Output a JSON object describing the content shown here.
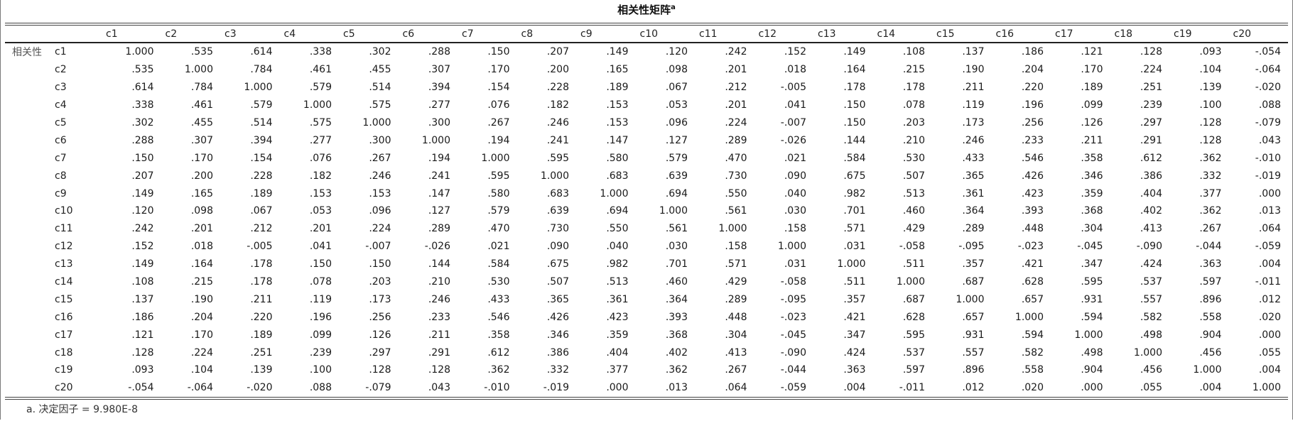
{
  "title": "相关性矩阵",
  "title_marker": "a",
  "row_group_label": "相关性",
  "columns": [
    "c1",
    "c2",
    "c3",
    "c4",
    "c5",
    "c6",
    "c7",
    "c8",
    "c9",
    "c10",
    "c11",
    "c12",
    "c13",
    "c14",
    "c15",
    "c16",
    "c17",
    "c18",
    "c19",
    "c20"
  ],
  "rows": [
    {
      "label": "c1",
      "values": [
        "1.000",
        ".535",
        ".614",
        ".338",
        ".302",
        ".288",
        ".150",
        ".207",
        ".149",
        ".120",
        ".242",
        ".152",
        ".149",
        ".108",
        ".137",
        ".186",
        ".121",
        ".128",
        ".093",
        "-.054"
      ]
    },
    {
      "label": "c2",
      "values": [
        ".535",
        "1.000",
        ".784",
        ".461",
        ".455",
        ".307",
        ".170",
        ".200",
        ".165",
        ".098",
        ".201",
        ".018",
        ".164",
        ".215",
        ".190",
        ".204",
        ".170",
        ".224",
        ".104",
        "-.064"
      ]
    },
    {
      "label": "c3",
      "values": [
        ".614",
        ".784",
        "1.000",
        ".579",
        ".514",
        ".394",
        ".154",
        ".228",
        ".189",
        ".067",
        ".212",
        "-.005",
        ".178",
        ".178",
        ".211",
        ".220",
        ".189",
        ".251",
        ".139",
        "-.020"
      ]
    },
    {
      "label": "c4",
      "values": [
        ".338",
        ".461",
        ".579",
        "1.000",
        ".575",
        ".277",
        ".076",
        ".182",
        ".153",
        ".053",
        ".201",
        ".041",
        ".150",
        ".078",
        ".119",
        ".196",
        ".099",
        ".239",
        ".100",
        ".088"
      ]
    },
    {
      "label": "c5",
      "values": [
        ".302",
        ".455",
        ".514",
        ".575",
        "1.000",
        ".300",
        ".267",
        ".246",
        ".153",
        ".096",
        ".224",
        "-.007",
        ".150",
        ".203",
        ".173",
        ".256",
        ".126",
        ".297",
        ".128",
        "-.079"
      ]
    },
    {
      "label": "c6",
      "values": [
        ".288",
        ".307",
        ".394",
        ".277",
        ".300",
        "1.000",
        ".194",
        ".241",
        ".147",
        ".127",
        ".289",
        "-.026",
        ".144",
        ".210",
        ".246",
        ".233",
        ".211",
        ".291",
        ".128",
        ".043"
      ]
    },
    {
      "label": "c7",
      "values": [
        ".150",
        ".170",
        ".154",
        ".076",
        ".267",
        ".194",
        "1.000",
        ".595",
        ".580",
        ".579",
        ".470",
        ".021",
        ".584",
        ".530",
        ".433",
        ".546",
        ".358",
        ".612",
        ".362",
        "-.010"
      ]
    },
    {
      "label": "c8",
      "values": [
        ".207",
        ".200",
        ".228",
        ".182",
        ".246",
        ".241",
        ".595",
        "1.000",
        ".683",
        ".639",
        ".730",
        ".090",
        ".675",
        ".507",
        ".365",
        ".426",
        ".346",
        ".386",
        ".332",
        "-.019"
      ]
    },
    {
      "label": "c9",
      "values": [
        ".149",
        ".165",
        ".189",
        ".153",
        ".153",
        ".147",
        ".580",
        ".683",
        "1.000",
        ".694",
        ".550",
        ".040",
        ".982",
        ".513",
        ".361",
        ".423",
        ".359",
        ".404",
        ".377",
        ".000"
      ]
    },
    {
      "label": "c10",
      "values": [
        ".120",
        ".098",
        ".067",
        ".053",
        ".096",
        ".127",
        ".579",
        ".639",
        ".694",
        "1.000",
        ".561",
        ".030",
        ".701",
        ".460",
        ".364",
        ".393",
        ".368",
        ".402",
        ".362",
        ".013"
      ]
    },
    {
      "label": "c11",
      "values": [
        ".242",
        ".201",
        ".212",
        ".201",
        ".224",
        ".289",
        ".470",
        ".730",
        ".550",
        ".561",
        "1.000",
        ".158",
        ".571",
        ".429",
        ".289",
        ".448",
        ".304",
        ".413",
        ".267",
        ".064"
      ]
    },
    {
      "label": "c12",
      "values": [
        ".152",
        ".018",
        "-.005",
        ".041",
        "-.007",
        "-.026",
        ".021",
        ".090",
        ".040",
        ".030",
        ".158",
        "1.000",
        ".031",
        "-.058",
        "-.095",
        "-.023",
        "-.045",
        "-.090",
        "-.044",
        "-.059"
      ]
    },
    {
      "label": "c13",
      "values": [
        ".149",
        ".164",
        ".178",
        ".150",
        ".150",
        ".144",
        ".584",
        ".675",
        ".982",
        ".701",
        ".571",
        ".031",
        "1.000",
        ".511",
        ".357",
        ".421",
        ".347",
        ".424",
        ".363",
        ".004"
      ]
    },
    {
      "label": "c14",
      "values": [
        ".108",
        ".215",
        ".178",
        ".078",
        ".203",
        ".210",
        ".530",
        ".507",
        ".513",
        ".460",
        ".429",
        "-.058",
        ".511",
        "1.000",
        ".687",
        ".628",
        ".595",
        ".537",
        ".597",
        "-.011"
      ]
    },
    {
      "label": "c15",
      "values": [
        ".137",
        ".190",
        ".211",
        ".119",
        ".173",
        ".246",
        ".433",
        ".365",
        ".361",
        ".364",
        ".289",
        "-.095",
        ".357",
        ".687",
        "1.000",
        ".657",
        ".931",
        ".557",
        ".896",
        ".012"
      ]
    },
    {
      "label": "c16",
      "values": [
        ".186",
        ".204",
        ".220",
        ".196",
        ".256",
        ".233",
        ".546",
        ".426",
        ".423",
        ".393",
        ".448",
        "-.023",
        ".421",
        ".628",
        ".657",
        "1.000",
        ".594",
        ".582",
        ".558",
        ".020"
      ]
    },
    {
      "label": "c17",
      "values": [
        ".121",
        ".170",
        ".189",
        ".099",
        ".126",
        ".211",
        ".358",
        ".346",
        ".359",
        ".368",
        ".304",
        "-.045",
        ".347",
        ".595",
        ".931",
        ".594",
        "1.000",
        ".498",
        ".904",
        ".000"
      ]
    },
    {
      "label": "c18",
      "values": [
        ".128",
        ".224",
        ".251",
        ".239",
        ".297",
        ".291",
        ".612",
        ".386",
        ".404",
        ".402",
        ".413",
        "-.090",
        ".424",
        ".537",
        ".557",
        ".582",
        ".498",
        "1.000",
        ".456",
        ".055"
      ]
    },
    {
      "label": "c19",
      "values": [
        ".093",
        ".104",
        ".139",
        ".100",
        ".128",
        ".128",
        ".362",
        ".332",
        ".377",
        ".362",
        ".267",
        "-.044",
        ".363",
        ".597",
        ".896",
        ".558",
        ".904",
        ".456",
        "1.000",
        ".004"
      ]
    },
    {
      "label": "c20",
      "values": [
        "-.054",
        "-.064",
        "-.020",
        ".088",
        "-.079",
        ".043",
        "-.010",
        "-.019",
        ".000",
        ".013",
        ".064",
        "-.059",
        ".004",
        "-.011",
        ".012",
        ".020",
        ".000",
        ".055",
        ".004",
        "1.000"
      ]
    }
  ],
  "footnote": "a. 决定因子 = 9.980E-8"
}
